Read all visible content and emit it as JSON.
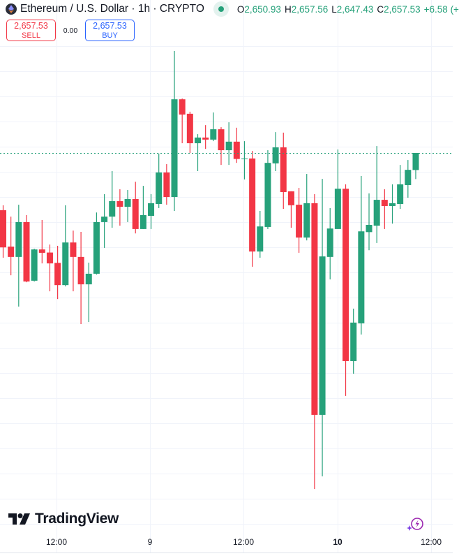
{
  "header": {
    "symbol_title": "Ethereum / U.S. Dollar · 1h · CRYPTO",
    "ohlc": [
      {
        "key": "O",
        "value": "2,650.93"
      },
      {
        "key": "H",
        "value": "2,657.56"
      },
      {
        "key": "L",
        "value": "2,647.43"
      },
      {
        "key": "C",
        "value": "2,657.53"
      }
    ],
    "change": "+6.58 (+"
  },
  "trade": {
    "sell_price": "2,657.53",
    "sell_label": "SELL",
    "spread": "0.00",
    "buy_price": "2,657.53",
    "buy_label": "BUY"
  },
  "logo": {
    "text": "TradingView"
  },
  "colors": {
    "up": "#26a17a",
    "down": "#f23645",
    "grid": "#f0f3fa",
    "accent_buy": "#2962ff",
    "ai_icon": "#9c27b0"
  },
  "chart_data": {
    "type": "candlestick",
    "interval": "1h",
    "last_price": 2657.53,
    "last_price_line": "dotted",
    "grid": true,
    "x_tick_labels": [
      "12:00",
      "9",
      "12:00",
      "10",
      "12:00"
    ],
    "candles": [
      [
        2635.4,
        2637.3,
        2617.0,
        2621.0
      ],
      [
        2621.3,
        2632.9,
        2610.2,
        2617.3
      ],
      [
        2617.3,
        2637.5,
        2598.1,
        2630.8
      ],
      [
        2630.8,
        2633.5,
        2607.5,
        2607.8
      ],
      [
        2608.1,
        2620.5,
        2607.8,
        2620.2
      ],
      [
        2620.2,
        2631.6,
        2614.8,
        2618.9
      ],
      [
        2619.0,
        2622.1,
        2604.0,
        2614.8
      ],
      [
        2615.0,
        2621.6,
        2601.0,
        2606.4
      ],
      [
        2606.4,
        2637.3,
        2605.9,
        2622.9
      ],
      [
        2622.9,
        2627.5,
        2604.0,
        2617.3
      ],
      [
        2617.3,
        2627.0,
        2591.3,
        2606.7
      ],
      [
        2606.7,
        2615.1,
        2592.1,
        2610.8
      ],
      [
        2610.8,
        2634.5,
        2610.5,
        2630.8
      ],
      [
        2630.8,
        2641.6,
        2620.8,
        2632.9
      ],
      [
        2632.9,
        2650.5,
        2628.6,
        2638.9
      ],
      [
        2638.9,
        2643.5,
        2629.4,
        2636.7
      ],
      [
        2636.7,
        2643.2,
        2630.8,
        2639.7
      ],
      [
        2639.7,
        2646.4,
        2626.4,
        2628.1
      ],
      [
        2628.1,
        2644.8,
        2628.1,
        2633.5
      ],
      [
        2633.2,
        2641.6,
        2628.1,
        2638.1
      ],
      [
        2637.8,
        2657.3,
        2636.2,
        2650.0
      ],
      [
        2650.0,
        2653.2,
        2637.5,
        2640.5
      ],
      [
        2640.5,
        2697.0,
        2635.1,
        2678.3
      ],
      [
        2678.3,
        2678.6,
        2661.3,
        2672.4
      ],
      [
        2672.7,
        2673.5,
        2657.5,
        2661.3
      ],
      [
        2661.3,
        2664.8,
        2650.5,
        2663.5
      ],
      [
        2663.5,
        2668.3,
        2659.1,
        2662.7
      ],
      [
        2662.7,
        2673.2,
        2662.1,
        2666.7
      ],
      [
        2666.7,
        2667.5,
        2652.9,
        2658.6
      ],
      [
        2658.6,
        2669.4,
        2652.9,
        2661.9
      ],
      [
        2661.9,
        2667.3,
        2653.7,
        2655.2
      ],
      [
        2655.2,
        2662.1,
        2647.3,
        2655.4
      ],
      [
        2655.4,
        2658.3,
        2613.5,
        2619.4
      ],
      [
        2619.4,
        2635.1,
        2617.0,
        2629.1
      ],
      [
        2628.9,
        2658.6,
        2628.1,
        2653.7
      ],
      [
        2653.5,
        2665.6,
        2650.5,
        2659.7
      ],
      [
        2659.7,
        2665.4,
        2635.9,
        2642.4
      ],
      [
        2642.7,
        2642.7,
        2628.6,
        2637.3
      ],
      [
        2637.5,
        2644.0,
        2618.9,
        2624.8
      ],
      [
        2624.8,
        2649.4,
        2623.7,
        2638.1
      ],
      [
        2638.1,
        2641.6,
        2527.5,
        2556.2
      ],
      [
        2556.2,
        2647.5,
        2532.4,
        2617.5
      ],
      [
        2617.3,
        2636.2,
        2608.6,
        2628.3
      ],
      [
        2628.1,
        2658.9,
        2628.1,
        2643.7
      ],
      [
        2643.7,
        2645.4,
        2563.5,
        2577.0
      ],
      [
        2577.0,
        2597.3,
        2572.1,
        2591.9
      ],
      [
        2591.6,
        2648.6,
        2587.3,
        2627.2
      ],
      [
        2626.9,
        2641.9,
        2619.9,
        2629.7
      ],
      [
        2629.4,
        2660.2,
        2622.7,
        2639.4
      ],
      [
        2639.4,
        2643.5,
        2628.1,
        2637.0
      ],
      [
        2637.0,
        2645.4,
        2630.2,
        2638.1
      ],
      [
        2637.8,
        2652.9,
        2635.9,
        2645.4
      ],
      [
        2645.1,
        2654.8,
        2640.2,
        2651.0
      ],
      [
        2650.93,
        2657.56,
        2647.43,
        2657.53
      ]
    ],
    "candle_fields": [
      "open",
      "high",
      "low",
      "close"
    ]
  }
}
